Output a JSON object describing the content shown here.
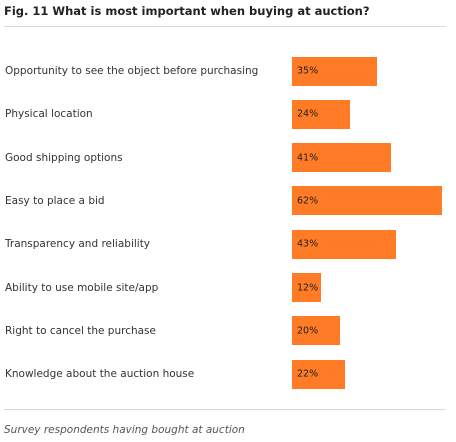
{
  "title": "Fig. 11 What is most important when buying at auction?",
  "source_note": "Survey respondents having bought at auction",
  "bar_color": "#ff7b26",
  "chart_data": {
    "type": "bar",
    "orientation": "horizontal",
    "title": "Fig. 11 What is most important when buying at auction?",
    "categories": [
      "Opportunity to see the object before purchasing",
      "Physical location",
      "Good shipping options",
      "Easy to place a bid",
      "Transparency and reliability",
      "Ability to use mobile site/app",
      "Right to cancel the purchase",
      "Knowledge about the auction house"
    ],
    "values": [
      35,
      24,
      41,
      62,
      43,
      12,
      20,
      22
    ],
    "value_labels": [
      "35%",
      "24%",
      "41%",
      "62%",
      "43%",
      "12%",
      "20%",
      "22%"
    ],
    "unit": "%",
    "xlim": [
      0,
      62
    ],
    "grid": false,
    "legend": "none"
  }
}
